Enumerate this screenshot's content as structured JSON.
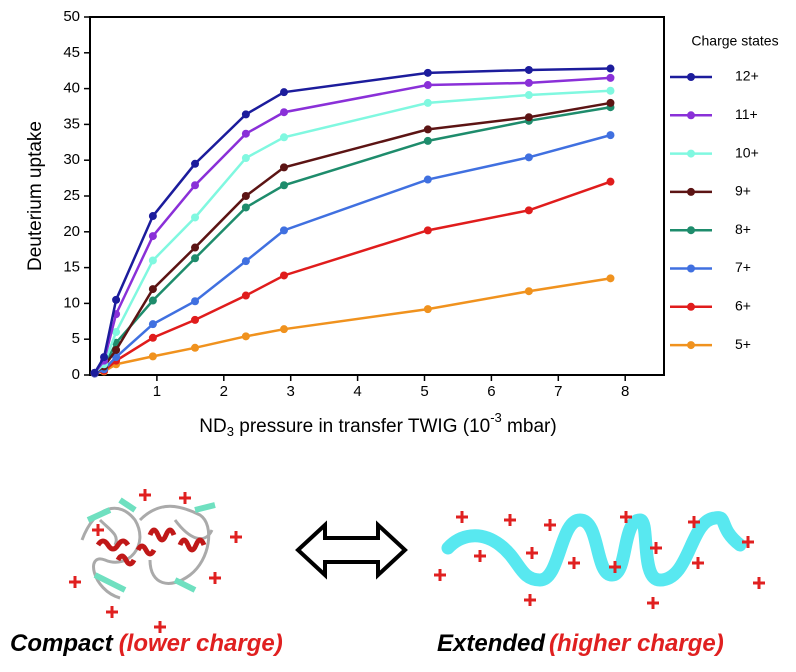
{
  "chart_data": {
    "type": "line",
    "x_label": [
      "ND",
      "3",
      " pressure in transfer TWIG  (10",
      "-3",
      " mbar)"
    ],
    "y_label": "Deuterium uptake",
    "legend_title": "Charge states",
    "x": [
      0.07,
      0.21,
      0.39,
      0.94,
      1.57,
      2.33,
      2.9,
      5.05,
      6.56,
      7.78
    ],
    "xlim": [
      0,
      8.58
    ],
    "xticks": [
      1,
      2,
      3,
      4,
      5,
      6,
      7,
      8
    ],
    "ylim": [
      0,
      50
    ],
    "yticks": [
      0,
      5,
      10,
      15,
      20,
      25,
      30,
      35,
      40,
      45,
      50
    ],
    "series": [
      {
        "name": "12+",
        "color": "#1c1c9c",
        "values": [
          0.3,
          2.5,
          10.5,
          22.2,
          29.5,
          36.4,
          39.5,
          42.2,
          42.6,
          42.8
        ]
      },
      {
        "name": "11+",
        "color": "#8a30d8",
        "values": [
          0.3,
          2,
          8.5,
          19.4,
          26.5,
          33.7,
          36.7,
          40.5,
          40.8,
          41.5
        ]
      },
      {
        "name": "10+",
        "color": "#80f8e0",
        "values": [
          0.3,
          1.5,
          6,
          16,
          22,
          30.3,
          33.2,
          38,
          39.1,
          39.7
        ]
      },
      {
        "name": "9+",
        "color": "#5c1414",
        "values": [
          0.3,
          1.2,
          3.5,
          12,
          17.8,
          25,
          29,
          34.3,
          36,
          38
        ]
      },
      {
        "name": "8+",
        "color": "#1e8c6c",
        "values": [
          0.3,
          1.2,
          4.5,
          10.4,
          16.3,
          23.4,
          26.5,
          32.7,
          35.5,
          37.4
        ]
      },
      {
        "name": "7+",
        "color": "#4070e0",
        "values": [
          0.2,
          0.8,
          2.5,
          7.1,
          10.3,
          15.9,
          20.2,
          27.3,
          30.4,
          33.5
        ]
      },
      {
        "name": "6+",
        "color": "#e01c1c",
        "values": [
          0.2,
          0.6,
          2,
          5.2,
          7.7,
          11.1,
          13.9,
          20.2,
          23,
          27
        ]
      },
      {
        "name": "5+",
        "color": "#f0921e",
        "values": [
          0.2,
          0.5,
          1.5,
          2.6,
          3.8,
          5.4,
          6.4,
          9.2,
          11.7,
          13.5
        ]
      }
    ]
  },
  "illustration": {
    "compact": "Compact",
    "compact_note": "(lower charge)",
    "extended": "Extended",
    "extended_note": "(higher charge)"
  }
}
